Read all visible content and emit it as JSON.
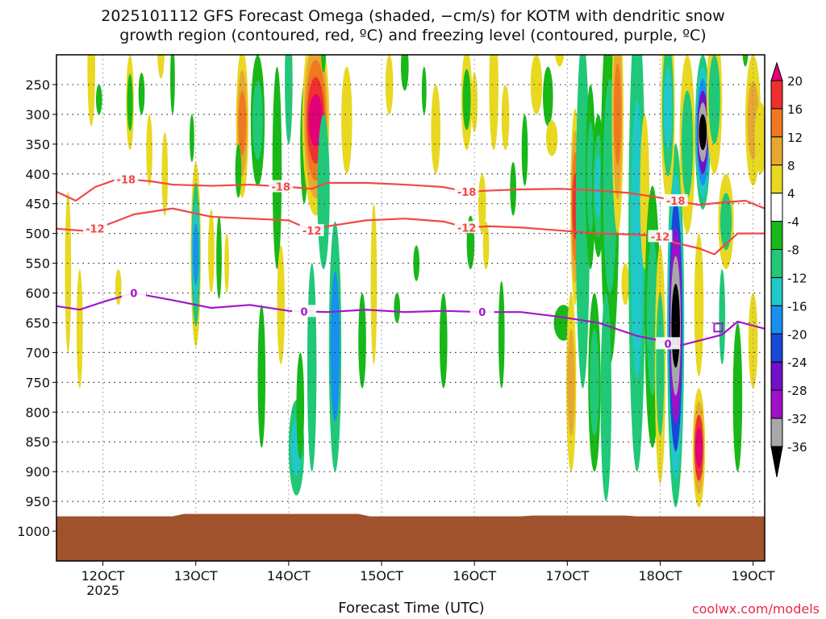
{
  "title_line1": "2025101112 GFS Forecast Omega (shaded, −cm/s) for KOTM with dendritic snow",
  "title_line2": "growth region (contoured, red, ºC) and freezing level (contoured, purple, ºC)",
  "credit": "coolwx.com/models",
  "chart_data": {
    "type": "heatmap",
    "xlabel": "Forecast Time (UTC)",
    "ylabel": "",
    "x_ticks": [
      {
        "label": "12OCT",
        "sublabel": "2025",
        "hour": 12
      },
      {
        "label": "13OCT",
        "hour": 36
      },
      {
        "label": "14OCT",
        "hour": 60
      },
      {
        "label": "15OCT",
        "hour": 84
      },
      {
        "label": "16OCT",
        "hour": 108
      },
      {
        "label": "17OCT",
        "hour": 132
      },
      {
        "label": "18OCT",
        "hour": 156
      },
      {
        "label": "19OCT",
        "hour": 180
      }
    ],
    "x_range_hours": [
      0,
      183
    ],
    "y_ticks": [
      250,
      300,
      350,
      400,
      450,
      500,
      550,
      600,
      650,
      700,
      750,
      800,
      850,
      900,
      950,
      1000
    ],
    "y_range_hpa": [
      200,
      1050
    ],
    "colorbar": {
      "labels": [
        "20",
        "16",
        "12",
        "8",
        "4",
        "-4",
        "-8",
        "-12",
        "-16",
        "-20",
        "-24",
        "-28",
        "-32",
        "-36"
      ],
      "colors": [
        "#e00078",
        "#ee3030",
        "#f07820",
        "#e8a830",
        "#e8d820",
        "#ffffff",
        "#18b818",
        "#20c878",
        "#20c8c8",
        "#1890f0",
        "#1848d8",
        "#7010c8",
        "#a010c8",
        "#a8a8a8",
        "#000000"
      ]
    },
    "contours": [
      {
        "label": "-18",
        "color": "#f04848",
        "points": [
          [
            0,
            430
          ],
          [
            5,
            445
          ],
          [
            10,
            422
          ],
          [
            16,
            408
          ],
          [
            24,
            412
          ],
          [
            30,
            418
          ],
          [
            40,
            420
          ],
          [
            50,
            418
          ],
          [
            60,
            422
          ],
          [
            66,
            425
          ],
          [
            70,
            415
          ],
          [
            80,
            415
          ],
          [
            90,
            418
          ],
          [
            100,
            422
          ],
          [
            106,
            430
          ],
          [
            112,
            428
          ],
          [
            120,
            426
          ],
          [
            130,
            425
          ],
          [
            140,
            428
          ],
          [
            148,
            432
          ],
          [
            156,
            440
          ],
          [
            160,
            445
          ],
          [
            166,
            452
          ],
          [
            172,
            448
          ],
          [
            178,
            445
          ],
          [
            183,
            458
          ]
        ],
        "label_hours": [
          18,
          58,
          106,
          160
        ]
      },
      {
        "label": "-12",
        "color": "#f04848",
        "points": [
          [
            0,
            492
          ],
          [
            8,
            496
          ],
          [
            12,
            488
          ],
          [
            20,
            468
          ],
          [
            30,
            458
          ],
          [
            40,
            472
          ],
          [
            50,
            475
          ],
          [
            60,
            478
          ],
          [
            66,
            495
          ],
          [
            70,
            488
          ],
          [
            80,
            478
          ],
          [
            90,
            475
          ],
          [
            100,
            480
          ],
          [
            106,
            490
          ],
          [
            112,
            488
          ],
          [
            120,
            490
          ],
          [
            130,
            495
          ],
          [
            140,
            500
          ],
          [
            150,
            502
          ],
          [
            156,
            505
          ],
          [
            160,
            516
          ],
          [
            166,
            525
          ],
          [
            170,
            535
          ],
          [
            176,
            500
          ],
          [
            183,
            500
          ]
        ],
        "label_hours": [
          10,
          66,
          106,
          156
        ]
      },
      {
        "label": "0",
        "color": "#a018c8",
        "points": [
          [
            0,
            622
          ],
          [
            6,
            628
          ],
          [
            12,
            615
          ],
          [
            20,
            600
          ],
          [
            30,
            612
          ],
          [
            40,
            625
          ],
          [
            50,
            620
          ],
          [
            60,
            630
          ],
          [
            70,
            632
          ],
          [
            80,
            628
          ],
          [
            90,
            632
          ],
          [
            100,
            630
          ],
          [
            110,
            632
          ],
          [
            120,
            632
          ],
          [
            130,
            640
          ],
          [
            140,
            650
          ],
          [
            150,
            672
          ],
          [
            156,
            680
          ],
          [
            160,
            690
          ],
          [
            166,
            680
          ],
          [
            172,
            670
          ],
          [
            176,
            648
          ],
          [
            183,
            660
          ]
        ],
        "label_hours": [
          20,
          64,
          110,
          158
        ]
      }
    ],
    "ground_level_hpa": 975
  }
}
